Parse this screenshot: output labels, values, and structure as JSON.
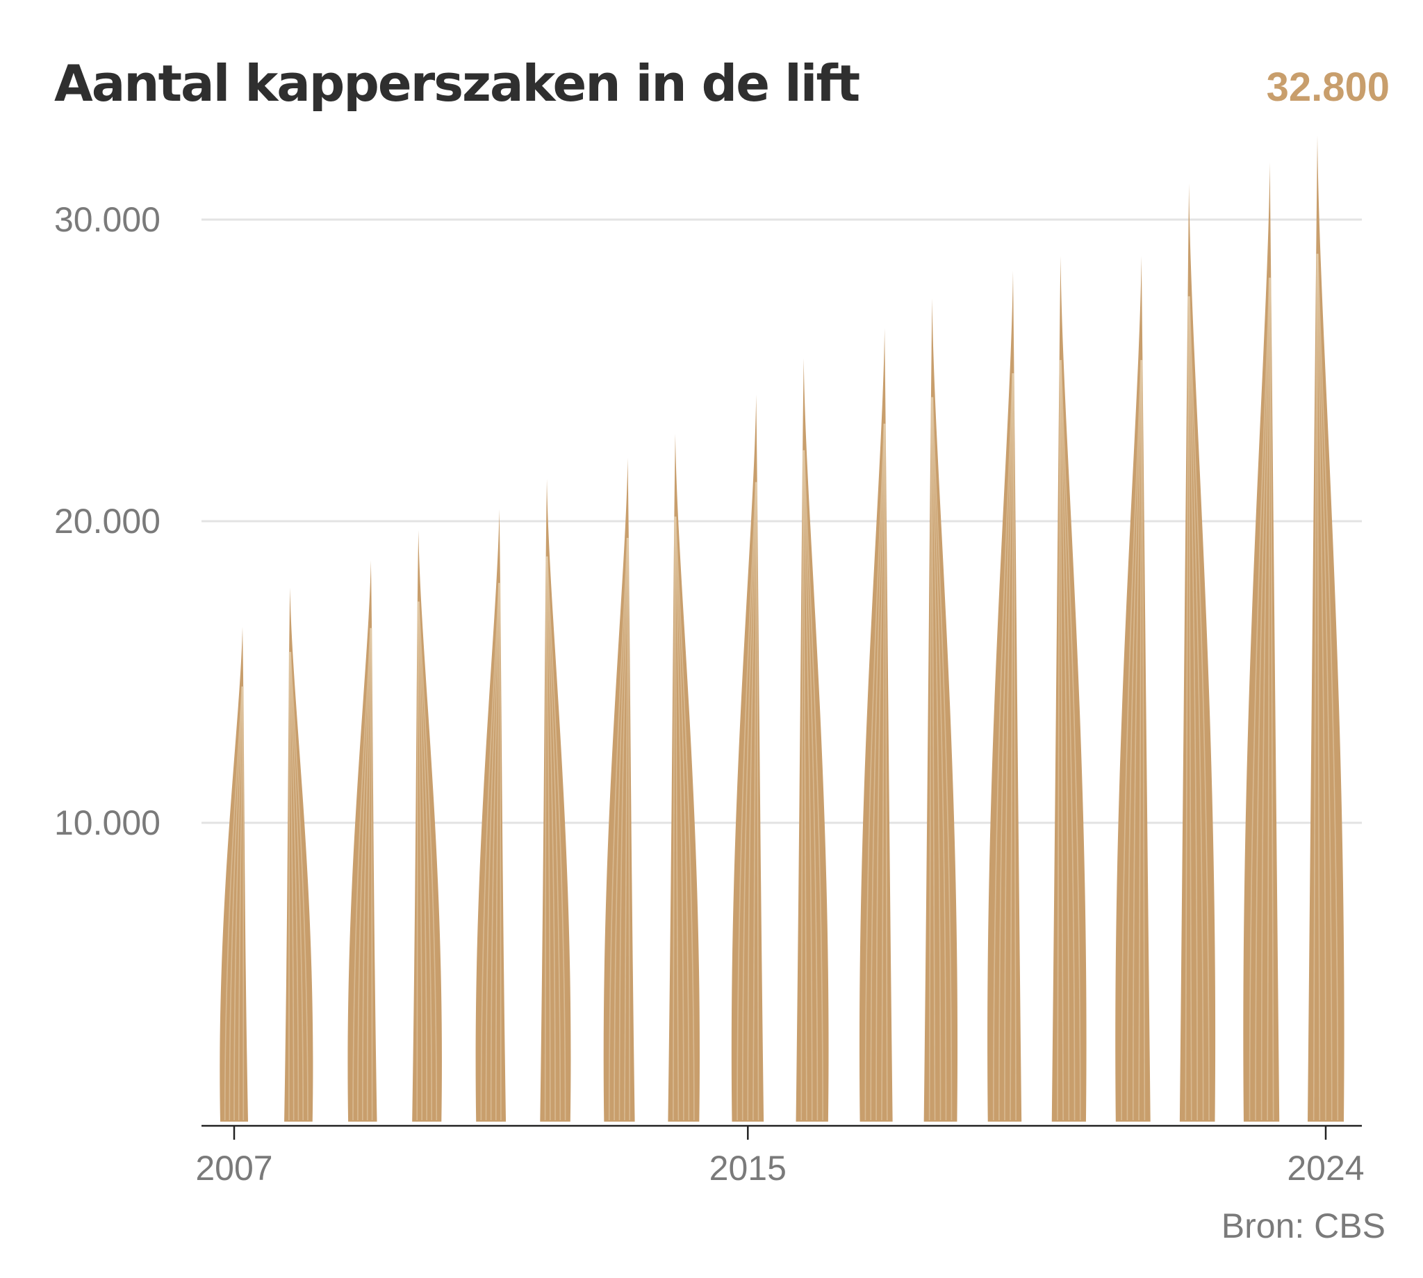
{
  "title": "Aantal kapperszaken in de lift",
  "highlight_value": "32.800",
  "source": "Bron: CBS",
  "colors": {
    "accent": "#c89e6c",
    "grid": "#e3e3e3",
    "axis": "#222222",
    "title": "#2f2f2f",
    "muted": "#7a7a7a"
  },
  "chart_data": {
    "type": "bar",
    "style": "hair-strand shaped bars",
    "categories": [
      "2007",
      "2008",
      "2009",
      "2010",
      "2011",
      "2012",
      "2013",
      "2014",
      "2015",
      "2016",
      "2017",
      "2018",
      "2019",
      "2020",
      "2021",
      "2022",
      "2023",
      "2024"
    ],
    "values": [
      16500,
      17800,
      18700,
      19700,
      20400,
      21400,
      22100,
      22900,
      24200,
      25400,
      26400,
      27400,
      28300,
      28800,
      28800,
      31200,
      31900,
      32800
    ],
    "x_tick_labels": [
      "2007",
      "2015",
      "2024"
    ],
    "y_ticks": [
      10000,
      20000,
      30000
    ],
    "y_tick_labels": [
      "10.000",
      "20.000",
      "30.000"
    ],
    "ylim": [
      0,
      33000
    ],
    "grid": true,
    "xlabel": "",
    "ylabel": ""
  }
}
